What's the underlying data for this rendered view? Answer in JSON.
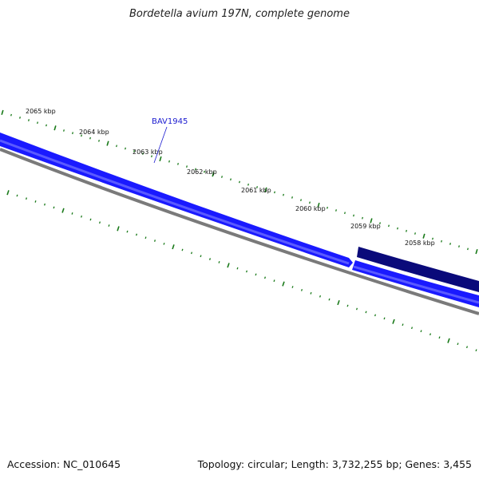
{
  "title": "Bordetella avium 197N, complete genome",
  "footer": {
    "accession": "Accession: NC_010645",
    "summary": "Topology: circular; Length: 3,732,255 bp; Genes: 3,455"
  },
  "colors": {
    "gene_forward": "#1a1aff",
    "gene_forward_light": "#5a5aff",
    "gene_reverse": "#0a0a7a",
    "backbone": "#7a7a7a",
    "ticks": "#1a7a1a",
    "gene_label": "#1a1ad0"
  },
  "scale": {
    "unit": "kbp",
    "major_ticks": [
      2065,
      2064,
      2063,
      2062,
      2061,
      2060,
      2059,
      2058
    ],
    "labels": [
      "2065 kbp",
      "2064 kbp",
      "2063 kbp",
      "2062 kbp",
      "2061 kbp",
      "2060 kbp",
      "2059 kbp",
      "2058 kbp"
    ]
  },
  "genes": [
    {
      "label": "BAV1945",
      "strand": "forward"
    }
  ]
}
